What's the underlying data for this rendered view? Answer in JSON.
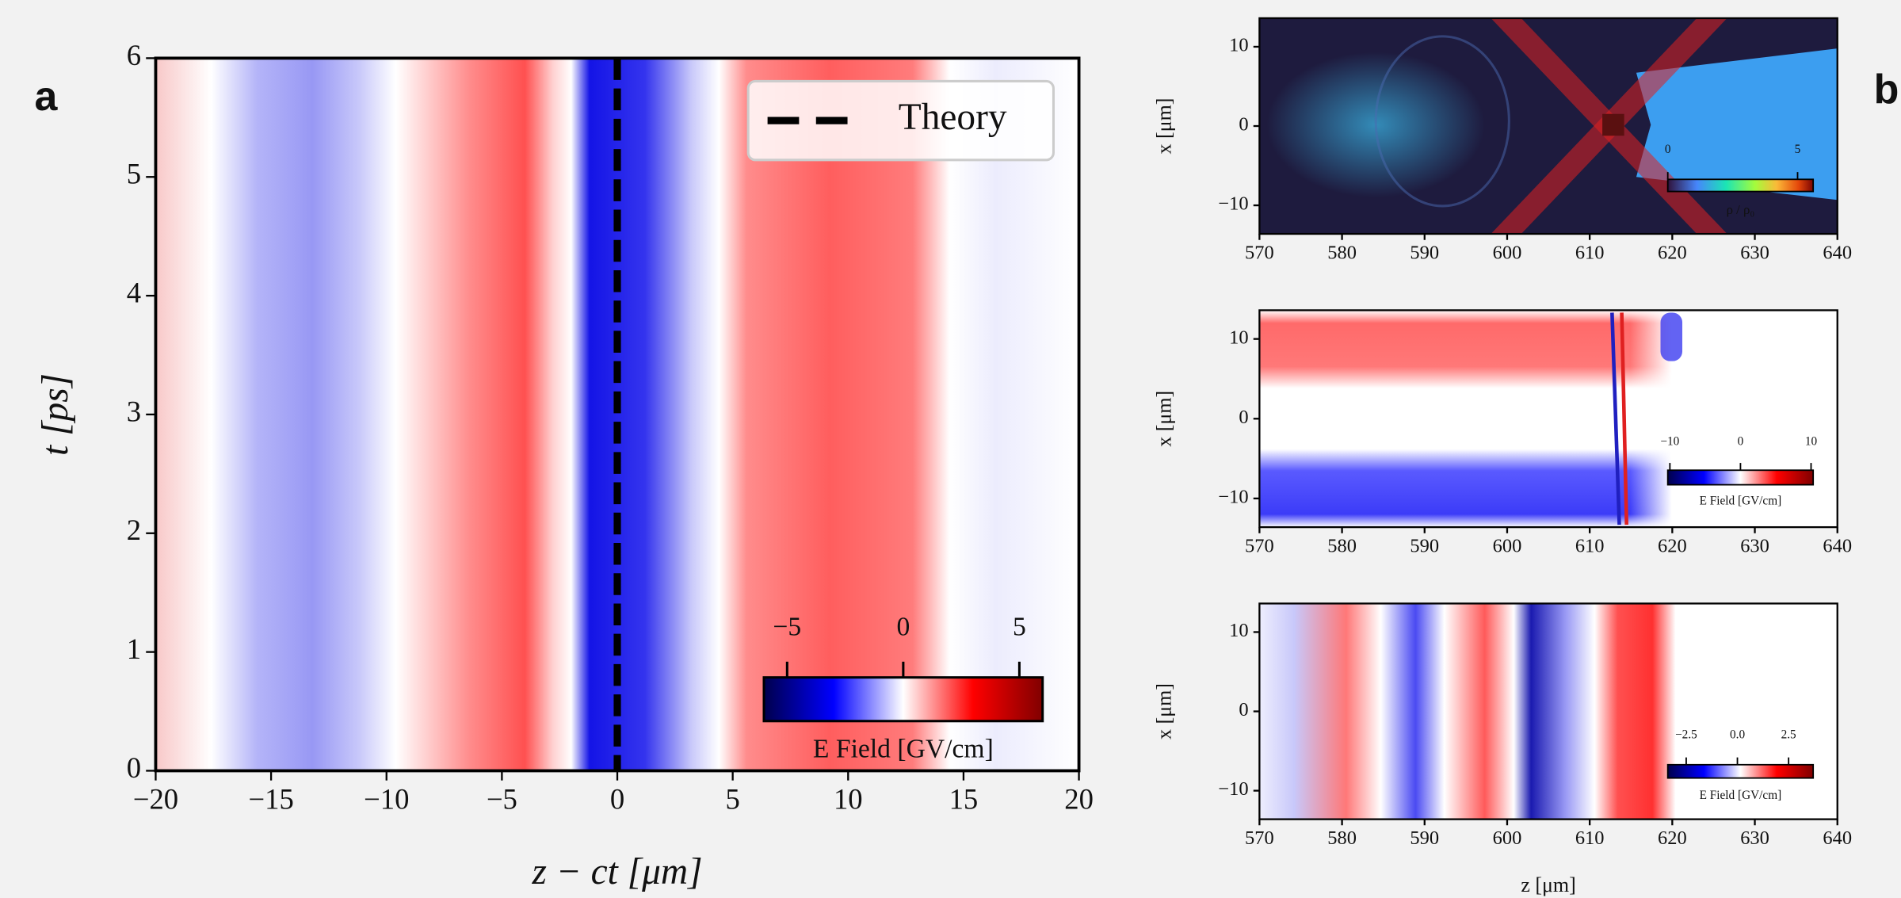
{
  "chart_data": [
    {
      "type": "heatmap",
      "panel_label": "a",
      "xlabel": "z − ct [μm]",
      "ylabel": "t [ps]",
      "xlim": [
        -20,
        20
      ],
      "xticks": [
        {
          "value": -20,
          "label": "−20"
        },
        {
          "value": -15,
          "label": "−15"
        },
        {
          "value": -10,
          "label": "−10"
        },
        {
          "value": -5,
          "label": "−5"
        },
        0,
        5,
        10,
        15,
        20
      ],
      "ylim": [
        0,
        6
      ],
      "yticks": [
        0,
        1,
        2,
        3,
        4,
        5,
        6
      ],
      "series": [
        {
          "name": "Theory",
          "color": "#000000",
          "x": 0
        }
      ],
      "legend": "upper right",
      "colorbar": {
        "label": "E Field [GV/cm]",
        "lim": [
          -6,
          6
        ],
        "ticks": [
          {
            "value": -5,
            "label": "−5"
          },
          0,
          5
        ]
      }
    },
    {
      "type": "heatmap",
      "panel_label": "b",
      "ylabel": "x [μm]",
      "xlim": [
        570,
        640
      ],
      "xticks": [
        570,
        580,
        590,
        600,
        610,
        620,
        630,
        640
      ],
      "ylim": [
        -13.6,
        13.6
      ],
      "yticks": [
        10,
        0,
        {
          "value": -10,
          "label": "−10"
        }
      ],
      "colorbar": {
        "label": "ρ / ρ₀",
        "lim": [
          0,
          5.6
        ],
        "ticks": [
          0,
          5
        ]
      }
    },
    {
      "type": "heatmap",
      "ylabel": "x [μm]",
      "xlim": [
        570,
        640
      ],
      "xticks": [
        570,
        580,
        590,
        600,
        610,
        620,
        630,
        640
      ],
      "ylim": [
        -13.6,
        13.6
      ],
      "yticks": [
        10,
        0,
        {
          "value": -10,
          "label": "−10"
        }
      ],
      "colorbar": {
        "label": "E Field [GV/cm]",
        "lim": [
          -10.3,
          10.3
        ],
        "ticks": [
          {
            "value": -10,
            "label": "−10"
          },
          0,
          10
        ]
      }
    },
    {
      "type": "heatmap",
      "xlabel": "z [μm]",
      "ylabel": "x [μm]",
      "xlim": [
        570,
        640
      ],
      "xticks": [
        570,
        580,
        590,
        600,
        610,
        620,
        630,
        640
      ],
      "ylim": [
        -13.6,
        13.6
      ],
      "yticks": [
        10,
        0,
        {
          "value": -10,
          "label": "−10"
        }
      ],
      "colorbar": {
        "label": "E Field [GV/cm]",
        "lim": [
          -3.4,
          3.7
        ],
        "ticks": [
          {
            "value": -2.5,
            "label": "−2.5"
          },
          {
            "value": 0,
            "label": "0.0"
          },
          2.5
        ]
      }
    }
  ]
}
